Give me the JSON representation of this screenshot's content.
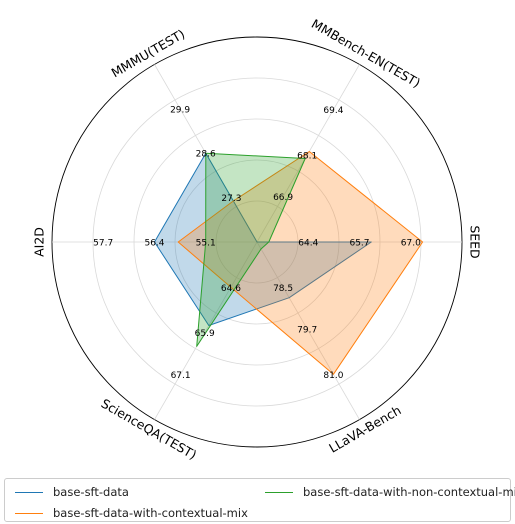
{
  "chart_data": {
    "type": "radar",
    "axes": [
      {
        "label": "SEED",
        "ticks": [
          "64.4",
          "65.7",
          "67.0"
        ],
        "range": [
          63.1,
          68.3
        ]
      },
      {
        "label": "MMBench-EN(TEST)",
        "ticks": [
          "66.9",
          "68.1",
          "69.4"
        ],
        "range": [
          65.6,
          70.7
        ]
      },
      {
        "label": "MMMU(TEST)",
        "ticks": [
          "27.3",
          "28.6",
          "29.9"
        ],
        "range": [
          26.0,
          31.2
        ]
      },
      {
        "label": "AI2D",
        "ticks": [
          "55.1",
          "56.4",
          "57.7"
        ],
        "range": [
          53.8,
          59.0
        ]
      },
      {
        "label": "ScienceQA(TEST)",
        "ticks": [
          "64.6",
          "65.9",
          "67.1"
        ],
        "range": [
          63.3,
          68.4
        ]
      },
      {
        "label": "LLaVA-Bench",
        "ticks": [
          "78.5",
          "79.7",
          "81.0"
        ],
        "range": [
          77.2,
          82.3
        ]
      }
    ],
    "series": [
      {
        "name": "base-sft-data",
        "color": "#1f77b4",
        "values": [
          66.0,
          65.6,
          28.6,
          56.4,
          65.7,
          78.8
        ]
      },
      {
        "name": "base-sft-data-with-contextual-mix",
        "color": "#ff7f0e",
        "values": [
          67.3,
          68.2,
          27.2,
          55.8,
          64.6,
          81.0
        ]
      },
      {
        "name": "base-sft-data-with-non-contextual-mix",
        "color": "#2ca02c",
        "values": [
          63.4,
          68.0,
          28.6,
          55.1,
          66.3,
          77.4
        ]
      }
    ],
    "legend": "bottom"
  }
}
